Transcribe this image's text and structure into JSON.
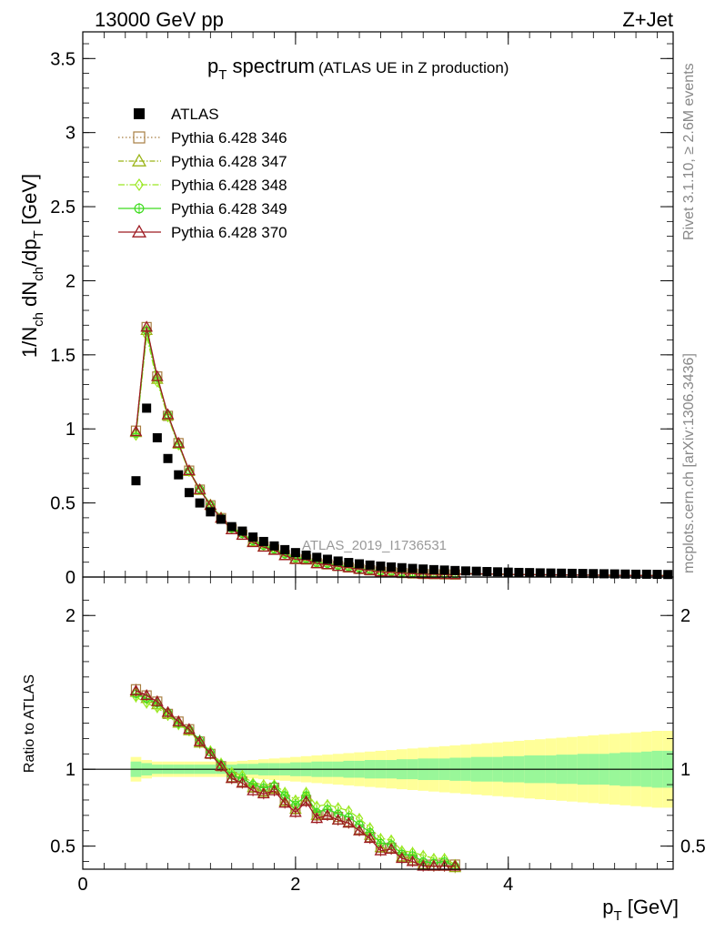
{
  "header": {
    "left": "13000 GeV pp",
    "right": "Z+Jet"
  },
  "side": {
    "rivet": "Rivet 3.1.10, ≥ 2.6M events",
    "mcplots": "mcplots.cern.ch [arXiv:1306.3436]"
  },
  "chart_data": {
    "type": "scatter",
    "title_main": "p",
    "title_sub": "T",
    "title_rest": " spectrum",
    "title_paren": "(ATLAS UE in Z production)",
    "analysis_label": "ATLAS_2019_I1736531",
    "ylabel_main": "1/N",
    "xlabel": "p",
    "xlabel_sub": "T",
    "xlabel_unit": " [GeV]",
    "ratio_ylabel": "Ratio to ATLAS",
    "xlim": [
      0,
      5.55
    ],
    "ylim": [
      0,
      3.68
    ],
    "ratio_ylim": [
      0.35,
      2.25
    ],
    "xticks": [
      "0",
      "2",
      "4"
    ],
    "yticks": [
      "0",
      "0.5",
      "1",
      "1.5",
      "2",
      "2.5",
      "3",
      "3.5"
    ],
    "ratio_yticks": [
      "0.5",
      "1",
      "2"
    ],
    "x": [
      0.5,
      0.6,
      0.7,
      0.8,
      0.9,
      1.0,
      1.1,
      1.2,
      1.3,
      1.4,
      1.5,
      1.6,
      1.7,
      1.8,
      1.9,
      2.0,
      2.1,
      2.2,
      2.3,
      2.4,
      2.5,
      2.6,
      2.7,
      2.8,
      2.9,
      3.0,
      3.1,
      3.2,
      3.3,
      3.4,
      3.5,
      3.6,
      3.7,
      3.8,
      3.9,
      4.0,
      4.1,
      4.2,
      4.3,
      4.4,
      4.5,
      4.6,
      4.7,
      4.8,
      4.9,
      5.0,
      5.1,
      5.2,
      5.3,
      5.4,
      5.5
    ],
    "data": [
      0.65,
      1.14,
      0.94,
      0.8,
      0.69,
      0.57,
      0.5,
      0.44,
      0.39,
      0.34,
      0.31,
      0.27,
      0.24,
      0.21,
      0.185,
      0.165,
      0.148,
      0.133,
      0.12,
      0.108,
      0.098,
      0.089,
      0.081,
      0.074,
      0.068,
      0.063,
      0.058,
      0.054,
      0.05,
      0.047,
      0.044,
      0.041,
      0.039,
      0.037,
      0.035,
      0.033,
      0.031,
      0.03,
      0.028,
      0.027,
      0.026,
      0.025,
      0.024,
      0.023,
      0.022,
      0.021,
      0.02,
      0.019,
      0.019,
      0.018,
      0.017
    ],
    "band_inner": [
      0.05,
      0.04,
      0.03,
      0.03,
      0.03,
      0.03,
      0.03,
      0.03,
      0.03,
      0.03,
      0.035,
      0.035,
      0.04,
      0.04,
      0.04,
      0.045,
      0.045,
      0.05,
      0.05,
      0.05,
      0.055,
      0.055,
      0.06,
      0.06,
      0.06,
      0.065,
      0.065,
      0.07,
      0.07,
      0.07,
      0.075,
      0.075,
      0.08,
      0.08,
      0.08,
      0.085,
      0.085,
      0.09,
      0.09,
      0.09,
      0.095,
      0.095,
      0.1,
      0.1,
      0.1,
      0.105,
      0.11,
      0.11,
      0.115,
      0.12,
      0.12
    ],
    "band_outer": [
      0.08,
      0.06,
      0.05,
      0.05,
      0.05,
      0.05,
      0.05,
      0.05,
      0.05,
      0.05,
      0.055,
      0.06,
      0.065,
      0.07,
      0.075,
      0.08,
      0.085,
      0.09,
      0.095,
      0.1,
      0.105,
      0.11,
      0.115,
      0.12,
      0.125,
      0.13,
      0.135,
      0.14,
      0.145,
      0.15,
      0.155,
      0.16,
      0.165,
      0.17,
      0.175,
      0.18,
      0.185,
      0.19,
      0.195,
      0.2,
      0.205,
      0.21,
      0.215,
      0.22,
      0.225,
      0.23,
      0.235,
      0.24,
      0.245,
      0.25,
      0.25
    ],
    "series": [
      {
        "name": "ATLAS",
        "legend": "ATLAS",
        "marker": "square",
        "color": "#000000"
      },
      {
        "name": "Pythia 6.428 346",
        "legend": "Pythia 6.428 346",
        "marker": "open-square",
        "color": "#a87e42",
        "dash": "1.5,2.5",
        "ratio": [
          1.52,
          1.48,
          1.44,
          1.36,
          1.31,
          1.26,
          1.18,
          1.1,
          1.02,
          0.95,
          0.92,
          0.88,
          0.86,
          0.88,
          0.8,
          0.74,
          0.8,
          0.7,
          0.71,
          0.69,
          0.66,
          0.61,
          0.56,
          0.49,
          0.49,
          0.43,
          0.41,
          0.38,
          0.38,
          0.38,
          0.38
        ]
      },
      {
        "name": "Pythia 6.428 347",
        "legend": "Pythia 6.428 347",
        "marker": "open-triangle",
        "color": "#9bb418",
        "dash": "6,2,1.5,2",
        "ratio": [
          1.5,
          1.46,
          1.42,
          1.36,
          1.3,
          1.25,
          1.17,
          1.1,
          1.02,
          0.94,
          0.91,
          0.88,
          0.85,
          0.87,
          0.79,
          0.74,
          0.82,
          0.7,
          0.7,
          0.67,
          0.65,
          0.6,
          0.57,
          0.49,
          0.48,
          0.43,
          0.42,
          0.38,
          0.37,
          0.37,
          0.36
        ]
      },
      {
        "name": "Pythia 6.428 348",
        "legend": "Pythia 6.428 348",
        "marker": "open-diamond",
        "color": "#9ae820",
        "dash": "7,2,1.5,2",
        "ratio": [
          1.47,
          1.43,
          1.4,
          1.35,
          1.29,
          1.25,
          1.18,
          1.12,
          1.04,
          0.98,
          0.96,
          0.91,
          0.9,
          0.9,
          0.85,
          0.8,
          0.85,
          0.76,
          0.77,
          0.75,
          0.73,
          0.68,
          0.62,
          0.55,
          0.54,
          0.47,
          0.46,
          0.44,
          0.42,
          0.42,
          0.38
        ]
      },
      {
        "name": "Pythia 6.428 349",
        "legend": "Pythia 6.428 349",
        "marker": "open-circle-cross",
        "color": "#3fdc1f",
        "dash": "",
        "ratio": [
          1.49,
          1.46,
          1.43,
          1.37,
          1.3,
          1.26,
          1.19,
          1.11,
          1.03,
          0.96,
          0.94,
          0.9,
          0.88,
          0.89,
          0.83,
          0.77,
          0.83,
          0.72,
          0.74,
          0.71,
          0.69,
          0.64,
          0.59,
          0.52,
          0.51,
          0.45,
          0.44,
          0.4,
          0.39,
          0.4,
          0.37
        ]
      },
      {
        "name": "Pythia 6.428 370",
        "legend": "Pythia 6.428 370",
        "marker": "open-triangle",
        "color": "#9e1b22",
        "dash": "",
        "ratio": [
          1.51,
          1.48,
          1.44,
          1.37,
          1.31,
          1.26,
          1.18,
          1.1,
          1.02,
          0.94,
          0.91,
          0.86,
          0.84,
          0.86,
          0.78,
          0.72,
          0.79,
          0.68,
          0.7,
          0.67,
          0.65,
          0.6,
          0.55,
          0.47,
          0.48,
          0.42,
          0.4,
          0.37,
          0.37,
          0.37,
          0.37
        ]
      }
    ]
  }
}
